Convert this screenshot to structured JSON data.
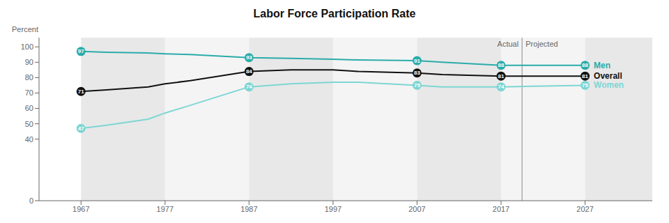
{
  "chart_data": {
    "type": "line",
    "title": "Labor Force Participation Rate",
    "y_label": "Percent",
    "x": [
      1967,
      1970,
      1975,
      1977,
      1980,
      1987,
      1992,
      1997,
      2000,
      2007,
      2010,
      2017,
      2022,
      2027
    ],
    "series": [
      {
        "name": "Women",
        "color": "#7dd6d4",
        "values": [
          47,
          49,
          53,
          57,
          62,
          74,
          76,
          77,
          77,
          75,
          74,
          74,
          74.5,
          75
        ],
        "labeled_x": [
          1967,
          1987,
          2007,
          2017,
          2027
        ]
      },
      {
        "name": "Overall",
        "color": "#111111",
        "values": [
          71,
          72,
          74,
          76,
          78,
          84,
          85,
          85,
          84,
          83,
          82,
          81,
          81,
          81
        ],
        "labeled_x": [
          1967,
          1987,
          2007,
          2017,
          2027
        ]
      },
      {
        "name": "Men",
        "color": "#2aacaa",
        "values": [
          97,
          96.5,
          96,
          95.5,
          95,
          93,
          92.5,
          92,
          91.5,
          91,
          90,
          88,
          88,
          88
        ],
        "labeled_x": [
          1967,
          1987,
          2007,
          2017,
          2027
        ]
      }
    ],
    "xlim": [
      1962,
      2035
    ],
    "xticks": [
      1967,
      1977,
      1987,
      1997,
      2007,
      2017,
      2027
    ],
    "ylim": [
      0,
      106
    ],
    "yticks": [
      0,
      40,
      50,
      60,
      70,
      80,
      90,
      100
    ],
    "grid": false,
    "data_labels": true,
    "annotations": [
      "Actual",
      "Projected"
    ],
    "divider_x": 2019.5
  }
}
